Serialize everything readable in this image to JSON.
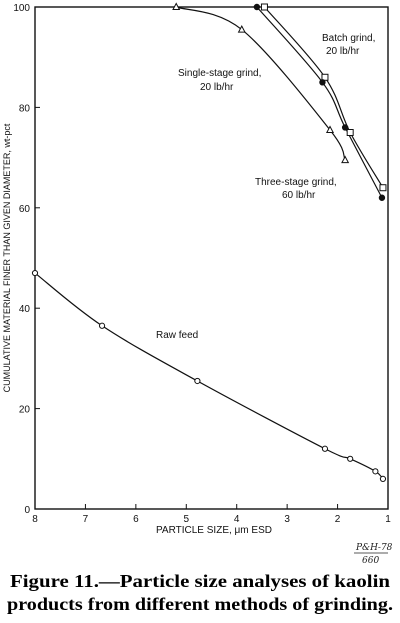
{
  "chart_data": {
    "type": "line",
    "xlabel": "PARTICLE SIZE, μm ESD",
    "ylabel": "CUMULATIVE MATERIAL FINER THAN GIVEN DIAMETER, wt-pct",
    "xlim": [
      8,
      1
    ],
    "ylim": [
      0,
      100
    ],
    "x_ticks": [
      8,
      7,
      6,
      5,
      4,
      3,
      2,
      1
    ],
    "y_ticks": [
      0,
      20,
      40,
      60,
      80,
      100
    ],
    "series": [
      {
        "name": "Raw feed",
        "marker": "circle-open",
        "x": [
          8.0,
          6.67,
          4.78,
          2.25,
          1.75,
          1.25,
          1.1
        ],
        "y": [
          47.0,
          36.5,
          25.5,
          12.0,
          10.0,
          7.5,
          6.0
        ]
      },
      {
        "name": "Single-stage grind, 20 lb/hr",
        "marker": "triangle-open",
        "x": [
          5.2,
          3.9,
          2.15,
          1.85
        ],
        "y": [
          100,
          95.5,
          75.5,
          69.5
        ]
      },
      {
        "name": "Batch grind, 20 lb/hr",
        "marker": "square-open",
        "x": [
          3.45,
          2.25,
          1.75,
          1.1
        ],
        "y": [
          100,
          86.0,
          75.0,
          64.0
        ]
      },
      {
        "name": "Three-stage grind, 60 lb/hr",
        "marker": "circle-filled",
        "x": [
          3.6,
          2.3,
          1.85,
          1.12
        ],
        "y": [
          100,
          85.0,
          76.0,
          62.0
        ]
      }
    ],
    "annotations": {
      "raw": "Raw feed",
      "single_1": "Single-stage grind,",
      "single_2": "20 lb/hr",
      "batch_1": "Batch grind,",
      "batch_2": "20 lb/hr",
      "three_1": "Three-stage grind,",
      "three_2": "60 lb/hr"
    }
  },
  "stamp": {
    "line1": "P&H-78",
    "line2": "660"
  },
  "caption": {
    "line1": "Figure 11.—Particle size analyses of kaolin",
    "line2": "products from different methods of grinding."
  }
}
